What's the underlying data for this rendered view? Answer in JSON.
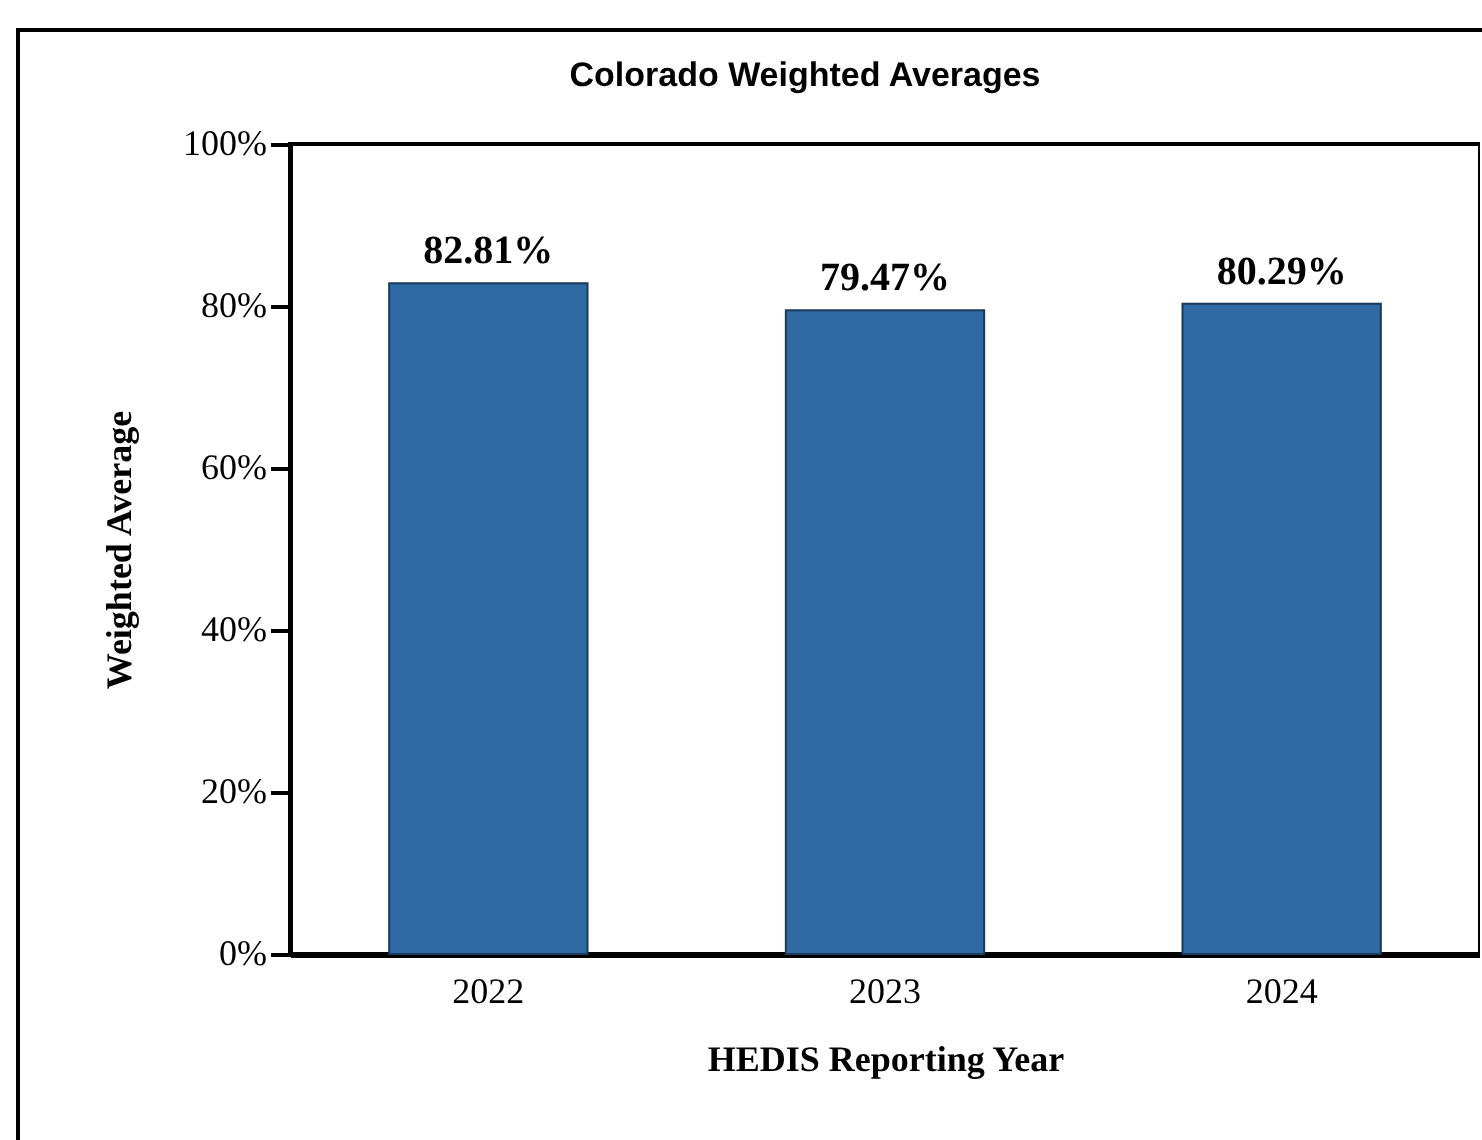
{
  "chart_data": {
    "type": "bar",
    "title": "Colorado Weighted Averages",
    "xlabel": "HEDIS Reporting Year",
    "ylabel": "Weighted Average",
    "categories": [
      "2022",
      "2023",
      "2024"
    ],
    "values": [
      82.81,
      79.47,
      80.29
    ],
    "value_labels": [
      "82.81%",
      "79.47%",
      "80.29%"
    ],
    "color": "#2f6aa5",
    "ylim": [
      0,
      100
    ],
    "yticks": [
      {
        "value": 0,
        "label": "0%"
      },
      {
        "value": 20,
        "label": "20%"
      },
      {
        "value": 40,
        "label": "40%"
      },
      {
        "value": 60,
        "label": "60%"
      },
      {
        "value": 80,
        "label": "80%"
      },
      {
        "value": 100,
        "label": "100%"
      }
    ],
    "grid": false
  }
}
